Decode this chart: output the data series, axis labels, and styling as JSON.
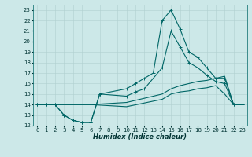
{
  "xlabel": "Humidex (Indice chaleur)",
  "background_color": "#cce8e8",
  "grid_color": "#b0d0d0",
  "line_color": "#006666",
  "xlim": [
    -0.5,
    23.5
  ],
  "ylim": [
    12,
    23.5
  ],
  "xticks": [
    0,
    1,
    2,
    3,
    4,
    5,
    6,
    7,
    8,
    9,
    10,
    11,
    12,
    13,
    14,
    15,
    16,
    17,
    18,
    19,
    20,
    21,
    22,
    23
  ],
  "yticks": [
    12,
    13,
    14,
    15,
    16,
    17,
    18,
    19,
    20,
    21,
    22,
    23
  ],
  "lines_with_markers": [
    {
      "x": [
        0,
        1,
        2,
        3,
        4,
        5,
        6,
        7,
        10,
        11,
        12,
        13,
        14,
        15,
        16,
        17,
        18,
        19,
        20,
        21,
        22,
        23
      ],
      "y": [
        14,
        14,
        14,
        13,
        12.5,
        12.3,
        12.3,
        15,
        15.5,
        16.0,
        16.5,
        17.0,
        22.0,
        23.0,
        21.2,
        19.0,
        18.5,
        17.5,
        16.5,
        16.5,
        14,
        14
      ]
    },
    {
      "x": [
        0,
        1,
        2,
        3,
        4,
        5,
        6,
        7,
        10,
        11,
        12,
        13,
        14,
        15,
        16,
        17,
        18,
        19,
        20,
        21,
        22,
        23
      ],
      "y": [
        14,
        14,
        14,
        13,
        12.5,
        12.3,
        12.3,
        15,
        14.8,
        15.2,
        15.5,
        16.5,
        17.5,
        21.0,
        19.5,
        18.0,
        17.5,
        16.8,
        16.2,
        16.0,
        14,
        14
      ]
    }
  ],
  "lines_flat": [
    {
      "x": [
        0,
        1,
        2,
        3,
        4,
        5,
        6,
        10,
        14,
        15,
        16,
        17,
        18,
        19,
        20,
        21,
        22,
        23
      ],
      "y": [
        14,
        14,
        14,
        14,
        14,
        14,
        14,
        14.2,
        15.0,
        15.5,
        15.8,
        16.0,
        16.2,
        16.3,
        16.5,
        16.7,
        14,
        14
      ]
    },
    {
      "x": [
        0,
        1,
        2,
        3,
        4,
        5,
        6,
        10,
        14,
        15,
        16,
        17,
        18,
        19,
        20,
        21,
        22,
        23
      ],
      "y": [
        14,
        14,
        14,
        14,
        14,
        14,
        14,
        13.8,
        14.5,
        15.0,
        15.2,
        15.3,
        15.5,
        15.6,
        15.8,
        15.0,
        14,
        14
      ]
    }
  ]
}
